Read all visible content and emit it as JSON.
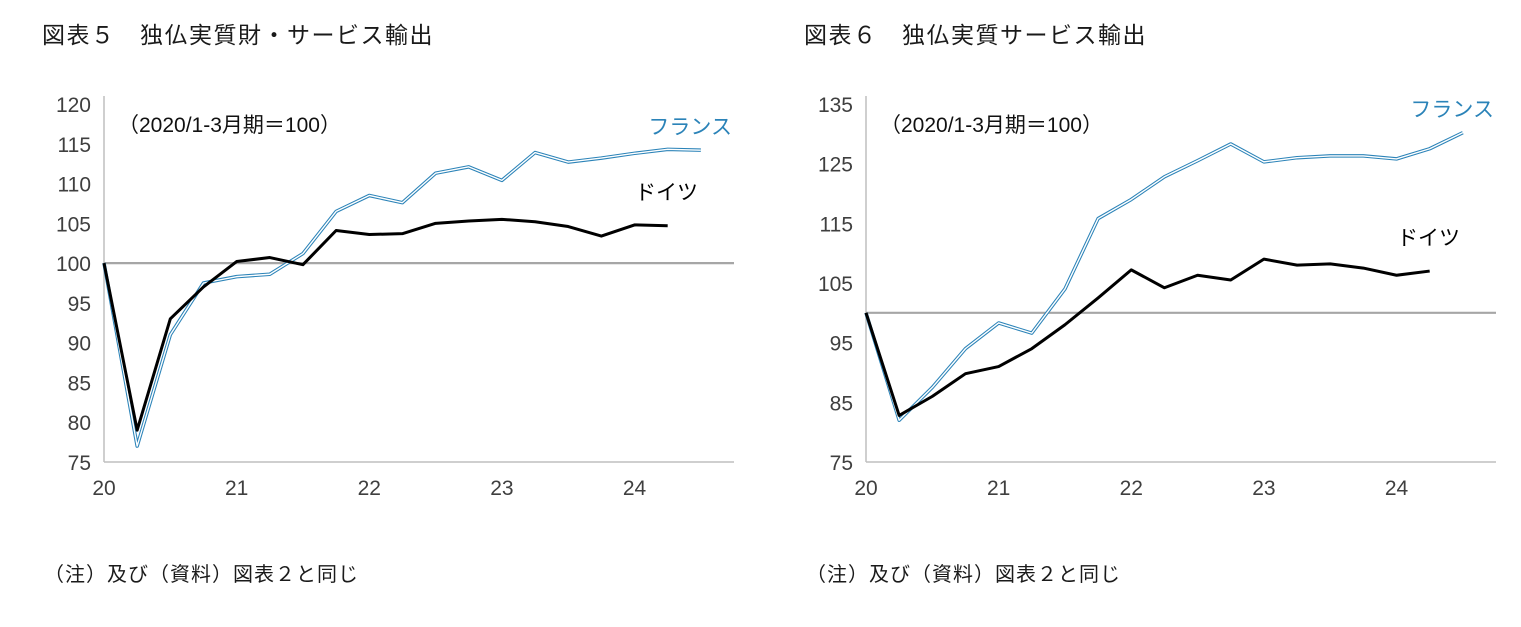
{
  "page": {
    "background": "#ffffff"
  },
  "charts": [
    {
      "title": "図表５　独仏実質財・サービス輸出",
      "note": "（注）及び（資料）図表２と同じ",
      "chart_data": {
        "type": "line",
        "annotation": "（2020/1-3月期＝100）",
        "x_unit": "quarter",
        "x_quarters": [
          "2020Q1",
          "2020Q2",
          "2020Q3",
          "2020Q4",
          "2021Q1",
          "2021Q2",
          "2021Q3",
          "2021Q4",
          "2022Q1",
          "2022Q2",
          "2022Q3",
          "2022Q4",
          "2023Q1",
          "2023Q2",
          "2023Q3",
          "2023Q4",
          "2024Q1",
          "2024Q2",
          "2024Q3"
        ],
        "xtick_labels": [
          "20",
          "21",
          "22",
          "23",
          "24"
        ],
        "xticks": [
          0,
          4,
          8,
          12,
          16
        ],
        "ylim": [
          75,
          120
        ],
        "yticks": [
          75,
          80,
          85,
          90,
          95,
          100,
          105,
          110,
          115,
          120
        ],
        "reference_line": 100,
        "grid": false,
        "legend_position": "inline-right",
        "colors": {
          "axis": "#bfbfbf",
          "reference": "#a6a6a6"
        },
        "series": [
          {
            "name": "フランス",
            "color": "#2b83b8",
            "style": "double-line",
            "values": [
              100,
              77,
              91,
              97.5,
              98.3,
              98.6,
              101.2,
              106.5,
              108.5,
              107.6,
              111.3,
              112.1,
              110.4,
              113.9,
              112.7,
              113.2,
              113.8,
              114.3,
              114.2
            ]
          },
          {
            "name": "ドイツ",
            "color": "#000000",
            "style": "solid",
            "values": [
              100,
              79,
              93,
              97,
              100.2,
              100.7,
              99.8,
              104.1,
              103.6,
              103.7,
              105.0,
              105.3,
              105.5,
              105.2,
              104.6,
              103.4,
              104.8,
              104.7
            ]
          }
        ]
      }
    },
    {
      "title": "図表６　独仏実質サービス輸出",
      "note": "（注）及び（資料）図表２と同じ",
      "chart_data": {
        "type": "line",
        "annotation": "（2020/1-3月期＝100）",
        "x_unit": "quarter",
        "x_quarters": [
          "2020Q1",
          "2020Q2",
          "2020Q3",
          "2020Q4",
          "2021Q1",
          "2021Q2",
          "2021Q3",
          "2021Q4",
          "2022Q1",
          "2022Q2",
          "2022Q3",
          "2022Q4",
          "2023Q1",
          "2023Q2",
          "2023Q3",
          "2023Q4",
          "2024Q1",
          "2024Q2",
          "2024Q3"
        ],
        "xtick_labels": [
          "20",
          "21",
          "22",
          "23",
          "24"
        ],
        "xticks": [
          0,
          4,
          8,
          12,
          16
        ],
        "ylim": [
          75,
          135
        ],
        "yticks": [
          75,
          85,
          95,
          105,
          115,
          125,
          135
        ],
        "reference_line": 100,
        "grid": false,
        "legend_position": "inline-right",
        "colors": {
          "axis": "#bfbfbf",
          "reference": "#a6a6a6"
        },
        "series": [
          {
            "name": "フランス",
            "color": "#2b83b8",
            "style": "double-line",
            "values": [
              100,
              82,
              87.5,
              94,
              98.3,
              96.6,
              104,
              115.8,
              119,
              122.8,
              125.5,
              128.3,
              125.3,
              126,
              126.3,
              126.3,
              125.8,
              127.5,
              130.2
            ]
          },
          {
            "name": "ドイツ",
            "color": "#000000",
            "style": "solid",
            "values": [
              100,
              82.8,
              86,
              89.8,
              91,
              94,
              98,
              102.5,
              107.2,
              104.2,
              106.3,
              105.5,
              109,
              108,
              108.2,
              107.5,
              106.3,
              107
            ]
          }
        ]
      }
    }
  ]
}
